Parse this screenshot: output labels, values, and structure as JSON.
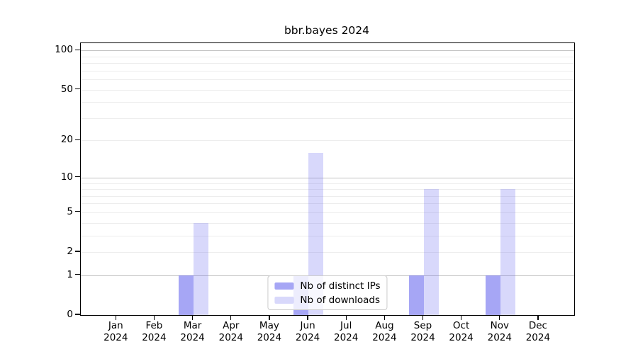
{
  "title": "bbr.bayes 2024",
  "chart_data": {
    "type": "bar",
    "title": "bbr.bayes 2024",
    "categories": [
      "Jan",
      "Feb",
      "Mar",
      "Apr",
      "May",
      "Jun",
      "Jul",
      "Aug",
      "Sep",
      "Oct",
      "Nov",
      "Dec"
    ],
    "x_year": "2024",
    "series": [
      {
        "name": "Nb of distinct IPs",
        "color": "rgba(99,99,238,0.57)",
        "values": [
          0,
          0,
          1,
          0,
          0,
          1,
          0,
          0,
          1,
          0,
          1,
          0
        ]
      },
      {
        "name": "Nb of downloads",
        "color": "rgba(99,99,238,0.25)",
        "values": [
          0,
          0,
          4,
          0,
          0,
          16,
          0,
          0,
          8,
          0,
          8,
          0
        ]
      }
    ],
    "yscale": "log10(1+y)",
    "ylim": [
      0,
      115
    ],
    "yticks_labeled": [
      0,
      1,
      2,
      5,
      10,
      20,
      50,
      100
    ],
    "yticks_minor": [
      2,
      3,
      4,
      5,
      6,
      7,
      8,
      9,
      20,
      30,
      40,
      50,
      60,
      70,
      80,
      90
    ],
    "ygrid_major": [
      1,
      10,
      100
    ],
    "grid": true,
    "legend_position": "lower center"
  },
  "colors": {
    "axis": "#000000",
    "grid_major": "#c2c2c2",
    "grid_minor": "#ededed",
    "background": "#ffffff",
    "legend_border": "#cccccc"
  }
}
